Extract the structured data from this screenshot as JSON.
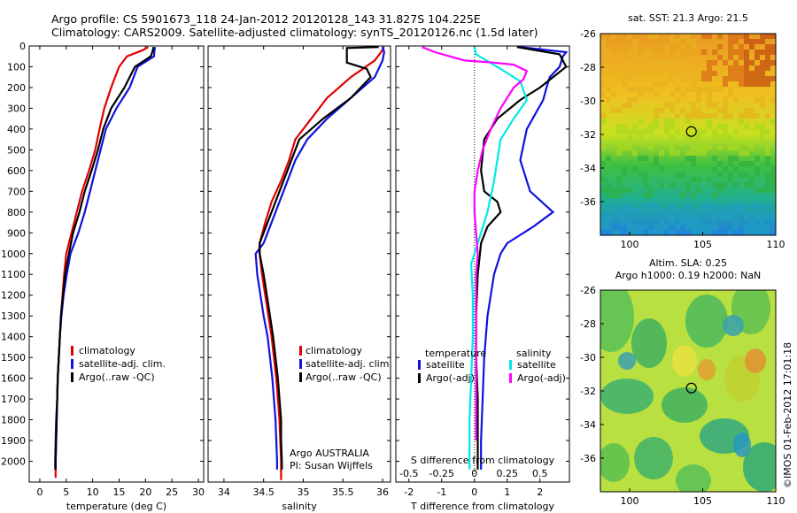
{
  "header": {
    "line1": "Argo profile: CS 5901673_118 24-Jan-2012 20120128_143 31.827S 104.225E",
    "line2": "Climatology: CARS2009. Satellite-adjusted climatology: synTS_20120126.nc (1.5d later)"
  },
  "colors": {
    "climatology": "#e00000",
    "satellite": "#1010e0",
    "argo": "#000000",
    "s_sat": "#00e8e8",
    "s_argo": "#ff00ff"
  },
  "depth_ticks": [
    0,
    100,
    200,
    300,
    400,
    500,
    600,
    700,
    800,
    900,
    1000,
    1100,
    1200,
    1300,
    1400,
    1500,
    1600,
    1700,
    1800,
    1900,
    2000
  ],
  "chart_data": [
    {
      "type": "line",
      "panel": "temperature",
      "xlabel": "temperature (deg C)",
      "xlim": [
        -2,
        31
      ],
      "ylim": [
        2100,
        0
      ],
      "x_ticks": [
        0,
        5,
        10,
        15,
        20,
        25,
        30
      ],
      "legend": [
        "climatology",
        "satellite-adj. clim.",
        "Argo(..raw -QC)"
      ],
      "series": [
        {
          "name": "climatology",
          "color": "#e00000",
          "points": [
            [
              20.5,
              5
            ],
            [
              19.5,
              20
            ],
            [
              16.5,
              50
            ],
            [
              15,
              100
            ],
            [
              13.5,
              200
            ],
            [
              12.2,
              300
            ],
            [
              11.3,
              400
            ],
            [
              10.5,
              500
            ],
            [
              9.3,
              600
            ],
            [
              8,
              700
            ],
            [
              7,
              800
            ],
            [
              6,
              900
            ],
            [
              5,
              1000
            ],
            [
              4.6,
              1100
            ],
            [
              4.3,
              1200
            ],
            [
              4,
              1300
            ],
            [
              3.8,
              1400
            ],
            [
              3.6,
              1500
            ],
            [
              3.4,
              1600
            ],
            [
              3.3,
              1700
            ],
            [
              3.2,
              1800
            ],
            [
              3.1,
              1900
            ],
            [
              3,
              2000
            ],
            [
              3,
              2080
            ]
          ]
        },
        {
          "name": "satellite-adj. clim.",
          "color": "#1010e0",
          "points": [
            [
              21.8,
              5
            ],
            [
              21.7,
              20
            ],
            [
              21.6,
              50
            ],
            [
              18.5,
              100
            ],
            [
              17,
              200
            ],
            [
              14.5,
              300
            ],
            [
              12.5,
              400
            ],
            [
              11.5,
              500
            ],
            [
              10.5,
              600
            ],
            [
              9.5,
              700
            ],
            [
              8.5,
              800
            ],
            [
              7.3,
              900
            ],
            [
              5.8,
              1000
            ],
            [
              5.1,
              1100
            ],
            [
              4.5,
              1200
            ],
            [
              4.1,
              1300
            ],
            [
              3.8,
              1400
            ],
            [
              3.6,
              1500
            ],
            [
              3.4,
              1600
            ],
            [
              3.3,
              1700
            ],
            [
              3.1,
              1800
            ],
            [
              3,
              1900
            ],
            [
              2.9,
              2000
            ],
            [
              2.9,
              2040
            ]
          ]
        },
        {
          "name": "Argo(..raw -QC)",
          "color": "#000000",
          "points": [
            [
              21.5,
              5
            ],
            [
              21.4,
              20
            ],
            [
              21,
              50
            ],
            [
              18,
              100
            ],
            [
              16,
              200
            ],
            [
              13.5,
              300
            ],
            [
              12,
              400
            ],
            [
              11,
              500
            ],
            [
              9.8,
              600
            ],
            [
              8.5,
              700
            ],
            [
              7.5,
              800
            ],
            [
              6.3,
              900
            ],
            [
              5.5,
              1000
            ],
            [
              4.8,
              1100
            ],
            [
              4.4,
              1200
            ],
            [
              4,
              1300
            ],
            [
              3.8,
              1400
            ],
            [
              3.6,
              1500
            ],
            [
              3.4,
              1600
            ],
            [
              3.3,
              1700
            ],
            [
              3.2,
              1800
            ],
            [
              3.1,
              1900
            ],
            [
              3,
              2000
            ],
            [
              3,
              2040
            ]
          ]
        }
      ]
    },
    {
      "type": "line",
      "panel": "salinity",
      "xlabel": "salinity",
      "xlim": [
        33.8,
        36.1
      ],
      "ylim": [
        2100,
        0
      ],
      "x_ticks": [
        34,
        34.5,
        35,
        35.5,
        36
      ],
      "x_tick_labels": [
        "34",
        "34.5",
        "35",
        "35.5",
        "36"
      ],
      "legend": [
        "climatology",
        "satellite-adj. clim.",
        "Argo(..raw -QC)"
      ],
      "annotation": [
        "Argo AUSTRALIA",
        "PI: Susan Wijffels"
      ],
      "series": [
        {
          "name": "climatology",
          "color": "#e00000",
          "points": [
            [
              36.02,
              5
            ],
            [
              35.98,
              30
            ],
            [
              35.9,
              70
            ],
            [
              35.6,
              150
            ],
            [
              35.3,
              250
            ],
            [
              35.1,
              350
            ],
            [
              34.9,
              450
            ],
            [
              34.82,
              550
            ],
            [
              34.72,
              650
            ],
            [
              34.6,
              750
            ],
            [
              34.52,
              850
            ],
            [
              34.45,
              950
            ],
            [
              34.45,
              1000
            ],
            [
              34.48,
              1100
            ],
            [
              34.52,
              1200
            ],
            [
              34.56,
              1300
            ],
            [
              34.6,
              1400
            ],
            [
              34.63,
              1500
            ],
            [
              34.66,
              1600
            ],
            [
              34.68,
              1700
            ],
            [
              34.7,
              1800
            ],
            [
              34.71,
              1900
            ],
            [
              34.72,
              2000
            ],
            [
              34.72,
              2090
            ]
          ]
        },
        {
          "name": "satellite-adj. clim.",
          "color": "#1010e0",
          "points": [
            [
              36,
              5
            ],
            [
              36.02,
              30
            ],
            [
              36,
              70
            ],
            [
              35.9,
              150
            ],
            [
              35.6,
              250
            ],
            [
              35.3,
              350
            ],
            [
              35.05,
              450
            ],
            [
              34.9,
              550
            ],
            [
              34.8,
              650
            ],
            [
              34.7,
              750
            ],
            [
              34.6,
              850
            ],
            [
              34.5,
              950
            ],
            [
              34.4,
              1000
            ],
            [
              34.42,
              1100
            ],
            [
              34.46,
              1200
            ],
            [
              34.5,
              1300
            ],
            [
              34.55,
              1400
            ],
            [
              34.58,
              1500
            ],
            [
              34.61,
              1600
            ],
            [
              34.63,
              1700
            ],
            [
              34.65,
              1800
            ],
            [
              34.66,
              1900
            ],
            [
              34.67,
              2000
            ],
            [
              34.67,
              2040
            ]
          ]
        },
        {
          "name": "Argo(..raw -QC)",
          "color": "#000000",
          "points": [
            [
              35.95,
              5
            ],
            [
              35.55,
              10
            ],
            [
              35.55,
              80
            ],
            [
              35.8,
              110
            ],
            [
              35.85,
              150
            ],
            [
              35.6,
              250
            ],
            [
              35.25,
              350
            ],
            [
              34.95,
              450
            ],
            [
              34.85,
              550
            ],
            [
              34.75,
              650
            ],
            [
              34.65,
              750
            ],
            [
              34.55,
              850
            ],
            [
              34.45,
              950
            ],
            [
              34.45,
              1000
            ],
            [
              34.5,
              1100
            ],
            [
              34.54,
              1200
            ],
            [
              34.58,
              1300
            ],
            [
              34.62,
              1400
            ],
            [
              34.65,
              1500
            ],
            [
              34.68,
              1600
            ],
            [
              34.7,
              1700
            ],
            [
              34.72,
              1800
            ],
            [
              34.72,
              1900
            ],
            [
              34.73,
              2000
            ],
            [
              34.73,
              2040
            ]
          ]
        }
      ]
    },
    {
      "type": "line",
      "panel": "differences",
      "xlabel": "T difference from climatology",
      "x2label": "S difference from climatology",
      "xlim": [
        -2.4,
        2.9
      ],
      "ylim": [
        2100,
        0
      ],
      "x_ticks": [
        -2,
        -1,
        0,
        1,
        2
      ],
      "x2_ticks": [
        -0.5,
        -0.25,
        0,
        0.25,
        0.5
      ],
      "x2_tick_labels": [
        "-0.5",
        "-0.25",
        "0",
        "0.25",
        "0.5"
      ],
      "legend_headers": [
        "temperature",
        "salinity"
      ],
      "legend": [
        "satellite",
        "Argo(-adj)",
        "satellite",
        "Argo(-adj)"
      ],
      "series": [
        {
          "name": "satellite",
          "quantity": "temperature",
          "color": "#1010e0",
          "points": [
            [
              1.4,
              5
            ],
            [
              2.8,
              30
            ],
            [
              2.7,
              50
            ],
            [
              2.6,
              100
            ],
            [
              2.3,
              150
            ],
            [
              2.2,
              200
            ],
            [
              2.1,
              260
            ],
            [
              1.6,
              400
            ],
            [
              1.4,
              550
            ],
            [
              1.7,
              700
            ],
            [
              2.4,
              800
            ],
            [
              1.8,
              870
            ],
            [
              1.3,
              920
            ],
            [
              1,
              950
            ],
            [
              0.8,
              1000
            ],
            [
              0.6,
              1100
            ],
            [
              0.5,
              1200
            ],
            [
              0.4,
              1300
            ],
            [
              0.3,
              1500
            ],
            [
              0.25,
              1700
            ],
            [
              0.2,
              1900
            ],
            [
              0.2,
              2040
            ]
          ]
        },
        {
          "name": "Argo(-adj)",
          "quantity": "temperature",
          "color": "#000000",
          "points": [
            [
              1.3,
              5
            ],
            [
              2.6,
              40
            ],
            [
              2.8,
              100
            ],
            [
              2.4,
              150
            ],
            [
              2,
              200
            ],
            [
              1.4,
              260
            ],
            [
              0.7,
              350
            ],
            [
              0.3,
              450
            ],
            [
              0.2,
              600
            ],
            [
              0.3,
              700
            ],
            [
              0.7,
              750
            ],
            [
              0.8,
              800
            ],
            [
              0.4,
              870
            ],
            [
              0.2,
              950
            ],
            [
              0.1,
              1100
            ],
            [
              0.05,
              1300
            ],
            [
              0.05,
              1500
            ],
            [
              0.1,
              1700
            ],
            [
              0.1,
              1900
            ],
            [
              0.1,
              2040
            ]
          ]
        },
        {
          "name": "satellite",
          "quantity": "salinity",
          "color": "#00e8e8",
          "points": [
            [
              0,
              5
            ],
            [
              0.05,
              40
            ],
            [
              0.8,
              110
            ],
            [
              1.4,
              170
            ],
            [
              1.6,
              260
            ],
            [
              1.2,
              350
            ],
            [
              0.8,
              450
            ],
            [
              0.7,
              550
            ],
            [
              0.6,
              650
            ],
            [
              0.4,
              800
            ],
            [
              0.1,
              950
            ],
            [
              -0.1,
              1050
            ],
            [
              -0.05,
              1200
            ],
            [
              -0.05,
              1400
            ],
            [
              -0.1,
              1600
            ],
            [
              -0.15,
              1800
            ],
            [
              -0.15,
              1950
            ],
            [
              -0.15,
              2040
            ]
          ]
        },
        {
          "name": "Argo(-adj)",
          "quantity": "salinity",
          "color": "#ff00ff",
          "points": [
            [
              -1.6,
              5
            ],
            [
              -1.2,
              30
            ],
            [
              -0.3,
              70
            ],
            [
              0.6,
              80
            ],
            [
              1.2,
              90
            ],
            [
              1.6,
              120
            ],
            [
              1.5,
              160
            ],
            [
              1.2,
              200
            ],
            [
              0.8,
              300
            ],
            [
              0.5,
              400
            ],
            [
              0.25,
              500
            ],
            [
              0.1,
              600
            ],
            [
              0,
              700
            ],
            [
              0,
              800
            ],
            [
              0.05,
              900
            ],
            [
              0.1,
              1000
            ],
            [
              0.05,
              1100
            ],
            [
              0.05,
              1300
            ],
            [
              0.05,
              1500
            ],
            [
              0.05,
              1700
            ],
            [
              0.05,
              1900
            ]
          ]
        }
      ]
    },
    {
      "type": "heatmap",
      "panel": "sst",
      "title": "sat. SST: 21.3 Argo: 21.5",
      "xlim": [
        98,
        110
      ],
      "ylim": [
        -38,
        -26
      ],
      "x_ticks": [
        100,
        105,
        110
      ],
      "y_ticks": [
        -26,
        -28,
        -30,
        -32,
        -34,
        -36
      ],
      "marker": [
        104.225,
        -31.827
      ]
    },
    {
      "type": "heatmap",
      "panel": "sla",
      "title_line1": "Altim. SLA: 0.25",
      "title_line2": "Argo h1000: 0.19 h2000: NaN",
      "xlim": [
        98,
        110
      ],
      "ylim": [
        -38,
        -26
      ],
      "x_ticks": [
        100,
        105,
        110
      ],
      "y_ticks": [
        -26,
        -28,
        -30,
        -32,
        -34,
        -36
      ],
      "marker": [
        104.225,
        -31.827
      ]
    }
  ],
  "watermark": "©IMOS 01-Feb-2012 17:01:18"
}
